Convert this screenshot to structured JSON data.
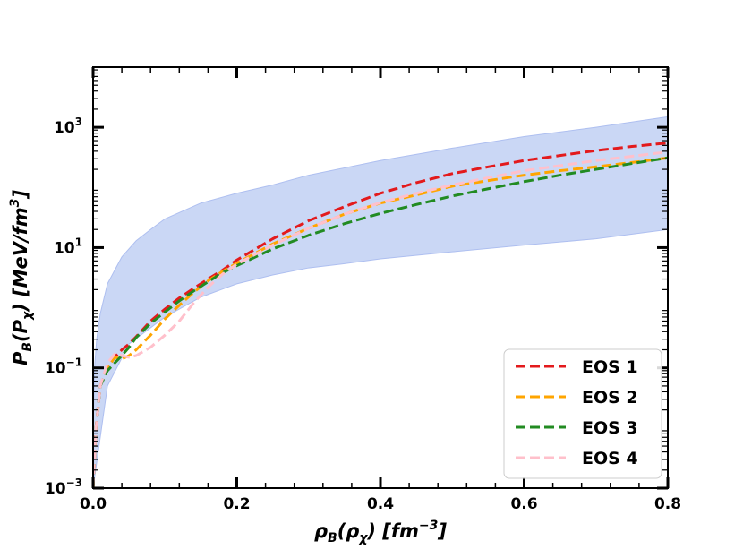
{
  "chart_data": {
    "type": "line",
    "xscale": "linear",
    "yscale": "log",
    "xlim": [
      0.0,
      0.8
    ],
    "ylim": [
      0.001,
      10000
    ],
    "xlabel": {
      "main": "ρ",
      "sub1": "B",
      "mid": "(ρ",
      "sub2": "χ",
      "end": ") [fm",
      "sup": "−3",
      "close": "]"
    },
    "ylabel": {
      "main": "P",
      "sub1": "B",
      "mid": "(P",
      "sub2": "χ",
      "end": ") [MeV/fm",
      "sup": "3",
      "close": "]"
    },
    "x_ticks": [
      {
        "value": 0.0,
        "label": "0.0"
      },
      {
        "value": 0.2,
        "label": "0.2"
      },
      {
        "value": 0.4,
        "label": "0.4"
      },
      {
        "value": 0.6,
        "label": "0.6"
      },
      {
        "value": 0.8,
        "label": "0.8"
      }
    ],
    "y_ticks": [
      {
        "value": 0.001,
        "base": "10",
        "exp": "−3"
      },
      {
        "value": 0.1,
        "base": "10",
        "exp": "−1"
      },
      {
        "value": 10,
        "base": "10",
        "exp": "1"
      },
      {
        "value": 1000,
        "base": "10",
        "exp": "3"
      }
    ],
    "band": {
      "color": "#cad7f5",
      "edge_color": "#aebff0",
      "upper": [
        [
          0.0,
          0.01
        ],
        [
          0.002,
          0.1
        ],
        [
          0.005,
          0.3
        ],
        [
          0.01,
          0.8
        ],
        [
          0.02,
          2.5
        ],
        [
          0.04,
          7
        ],
        [
          0.06,
          13
        ],
        [
          0.08,
          20
        ],
        [
          0.1,
          30
        ],
        [
          0.15,
          55
        ],
        [
          0.2,
          80
        ],
        [
          0.25,
          110
        ],
        [
          0.3,
          160
        ],
        [
          0.4,
          280
        ],
        [
          0.5,
          450
        ],
        [
          0.6,
          700
        ],
        [
          0.7,
          1000
        ],
        [
          0.8,
          1500
        ]
      ],
      "lower": [
        [
          0.0,
          0.001
        ],
        [
          0.02,
          0.05
        ],
        [
          0.05,
          0.25
        ],
        [
          0.1,
          0.7
        ],
        [
          0.15,
          1.5
        ],
        [
          0.2,
          2.5
        ],
        [
          0.25,
          3.5
        ],
        [
          0.3,
          4.6
        ],
        [
          0.35,
          5.4
        ],
        [
          0.4,
          6.5
        ],
        [
          0.5,
          8.5
        ],
        [
          0.6,
          11
        ],
        [
          0.7,
          14
        ],
        [
          0.8,
          20
        ]
      ]
    },
    "series": [
      {
        "name": "EOS 1",
        "color": "#e31a1c",
        "points": [
          [
            0.0,
            0.001
          ],
          [
            0.004,
            0.01
          ],
          [
            0.01,
            0.05
          ],
          [
            0.02,
            0.1
          ],
          [
            0.03,
            0.15
          ],
          [
            0.04,
            0.2
          ],
          [
            0.05,
            0.25
          ],
          [
            0.06,
            0.33
          ],
          [
            0.08,
            0.6
          ],
          [
            0.1,
            0.95
          ],
          [
            0.12,
            1.45
          ],
          [
            0.14,
            2.1
          ],
          [
            0.16,
            3.0
          ],
          [
            0.18,
            4.2
          ],
          [
            0.2,
            6.2
          ],
          [
            0.25,
            14
          ],
          [
            0.3,
            28
          ],
          [
            0.35,
            48
          ],
          [
            0.4,
            80
          ],
          [
            0.45,
            120
          ],
          [
            0.5,
            170
          ],
          [
            0.55,
            220
          ],
          [
            0.6,
            280
          ],
          [
            0.65,
            340
          ],
          [
            0.7,
            410
          ],
          [
            0.75,
            480
          ],
          [
            0.8,
            550
          ]
        ]
      },
      {
        "name": "EOS 2",
        "color": "#ffa500",
        "points": [
          [
            0.0,
            0.001
          ],
          [
            0.004,
            0.01
          ],
          [
            0.01,
            0.05
          ],
          [
            0.02,
            0.1
          ],
          [
            0.03,
            0.15
          ],
          [
            0.04,
            0.14
          ],
          [
            0.05,
            0.16
          ],
          [
            0.06,
            0.2
          ],
          [
            0.08,
            0.35
          ],
          [
            0.1,
            0.65
          ],
          [
            0.12,
            1.1
          ],
          [
            0.14,
            1.8
          ],
          [
            0.16,
            2.8
          ],
          [
            0.18,
            4.0
          ],
          [
            0.2,
            5.5
          ],
          [
            0.25,
            11.5
          ],
          [
            0.3,
            21
          ],
          [
            0.35,
            36
          ],
          [
            0.4,
            55
          ],
          [
            0.45,
            75
          ],
          [
            0.5,
            105
          ],
          [
            0.55,
            130
          ],
          [
            0.6,
            160
          ],
          [
            0.65,
            190
          ],
          [
            0.7,
            220
          ],
          [
            0.75,
            260
          ],
          [
            0.8,
            310
          ]
        ]
      },
      {
        "name": "EOS 3",
        "color": "#228b22",
        "points": [
          [
            0.0,
            0.001
          ],
          [
            0.004,
            0.01
          ],
          [
            0.01,
            0.05
          ],
          [
            0.02,
            0.09
          ],
          [
            0.03,
            0.12
          ],
          [
            0.04,
            0.16
          ],
          [
            0.05,
            0.22
          ],
          [
            0.06,
            0.32
          ],
          [
            0.08,
            0.55
          ],
          [
            0.1,
            0.85
          ],
          [
            0.12,
            1.3
          ],
          [
            0.14,
            1.9
          ],
          [
            0.16,
            2.7
          ],
          [
            0.18,
            3.8
          ],
          [
            0.2,
            5.0
          ],
          [
            0.25,
            9.5
          ],
          [
            0.3,
            16
          ],
          [
            0.35,
            25
          ],
          [
            0.4,
            37
          ],
          [
            0.45,
            52
          ],
          [
            0.5,
            72
          ],
          [
            0.55,
            95
          ],
          [
            0.6,
            125
          ],
          [
            0.65,
            160
          ],
          [
            0.7,
            200
          ],
          [
            0.75,
            250
          ],
          [
            0.8,
            310
          ]
        ]
      },
      {
        "name": "EOS 4",
        "color": "#ffc0cb",
        "points": [
          [
            0.0,
            0.001
          ],
          [
            0.004,
            0.01
          ],
          [
            0.01,
            0.05
          ],
          [
            0.02,
            0.12
          ],
          [
            0.03,
            0.17
          ],
          [
            0.04,
            0.16
          ],
          [
            0.05,
            0.15
          ],
          [
            0.06,
            0.16
          ],
          [
            0.08,
            0.22
          ],
          [
            0.1,
            0.35
          ],
          [
            0.12,
            0.6
          ],
          [
            0.14,
            1.2
          ],
          [
            0.16,
            2.2
          ],
          [
            0.18,
            3.6
          ],
          [
            0.2,
            5.3
          ],
          [
            0.25,
            11
          ],
          [
            0.3,
            21
          ],
          [
            0.35,
            36
          ],
          [
            0.4,
            56
          ],
          [
            0.45,
            80
          ],
          [
            0.5,
            110
          ],
          [
            0.55,
            145
          ],
          [
            0.6,
            190
          ],
          [
            0.65,
            230
          ],
          [
            0.7,
            280
          ],
          [
            0.75,
            330
          ],
          [
            0.8,
            390
          ]
        ]
      }
    ],
    "legend": {
      "position": "lower-right",
      "dashed": true
    },
    "grid": false
  }
}
